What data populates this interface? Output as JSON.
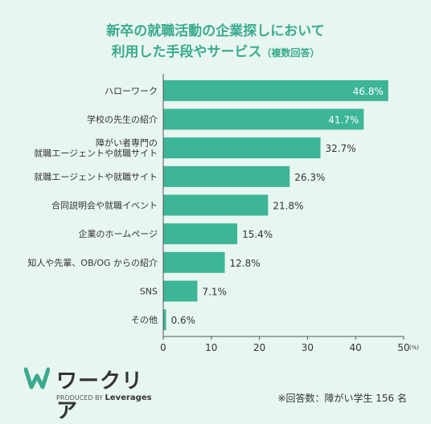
{
  "title": {
    "line1": "新卒の就職活動の企業探しにおいて",
    "line2": "利用した手段やサービス",
    "note": "（複数回答）"
  },
  "chart_data": {
    "type": "bar",
    "orientation": "horizontal",
    "categories": [
      "ハローワーク",
      "学校の先生の紹介",
      "障がい者専門の\n就職エージェントや就職サイト",
      "就職エージェントや就職サイト",
      "合同説明会や就職イベント",
      "企業のホームページ",
      "知人や先輩、OB/OG からの紹介",
      "SNS",
      "その他"
    ],
    "values": [
      46.8,
      41.7,
      32.7,
      26.3,
      21.8,
      15.4,
      12.8,
      7.1,
      0.6
    ],
    "data_labels": [
      "46.8%",
      "41.7%",
      "32.7%",
      "26.3%",
      "21.8%",
      "15.4%",
      "12.8%",
      "7.1%",
      "0.6%"
    ],
    "xlim": [
      0,
      50
    ],
    "xticks": [
      "0",
      "10",
      "20",
      "30",
      "40",
      "50"
    ],
    "xunit": "(%)",
    "grid": false,
    "bar_color": "#3db597"
  },
  "logo": {
    "name": "ワークリア",
    "produced_by": "PRODUCED BY",
    "brand": "Leverages",
    "color": "#3aaa8e"
  },
  "footnote": "※回答数：障がい学生 156 名"
}
